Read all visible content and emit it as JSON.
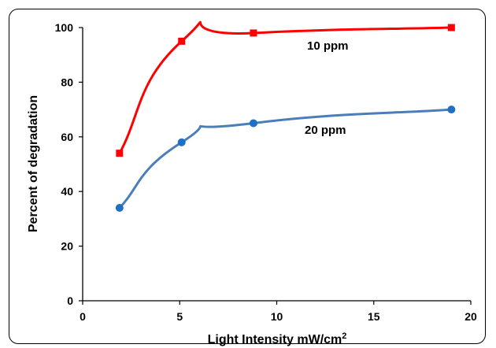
{
  "chart_data": {
    "type": "line",
    "title": "",
    "xlabel": "Light Intensity mW/cm",
    "xlabel_superscript": "2",
    "ylabel": "Percent of degradation",
    "xlim": [
      0,
      20
    ],
    "ylim": [
      0,
      100
    ],
    "xticks": [
      0,
      5,
      10,
      15,
      20
    ],
    "yticks": [
      0,
      20,
      40,
      60,
      80,
      100
    ],
    "grid": false,
    "legend": "none",
    "series": [
      {
        "name": "10 ppm",
        "color": "#ff0000",
        "marker": "square",
        "x": [
          1.9,
          5.1,
          8.8,
          19.0
        ],
        "y": [
          54,
          95,
          98,
          100
        ]
      },
      {
        "name": "20 ppm",
        "color": "#4a7ebb",
        "marker": "circle",
        "marker_color": "#1f6fc4",
        "x": [
          1.9,
          5.1,
          8.8,
          19.0
        ],
        "y": [
          34,
          58,
          65,
          70
        ]
      }
    ]
  }
}
